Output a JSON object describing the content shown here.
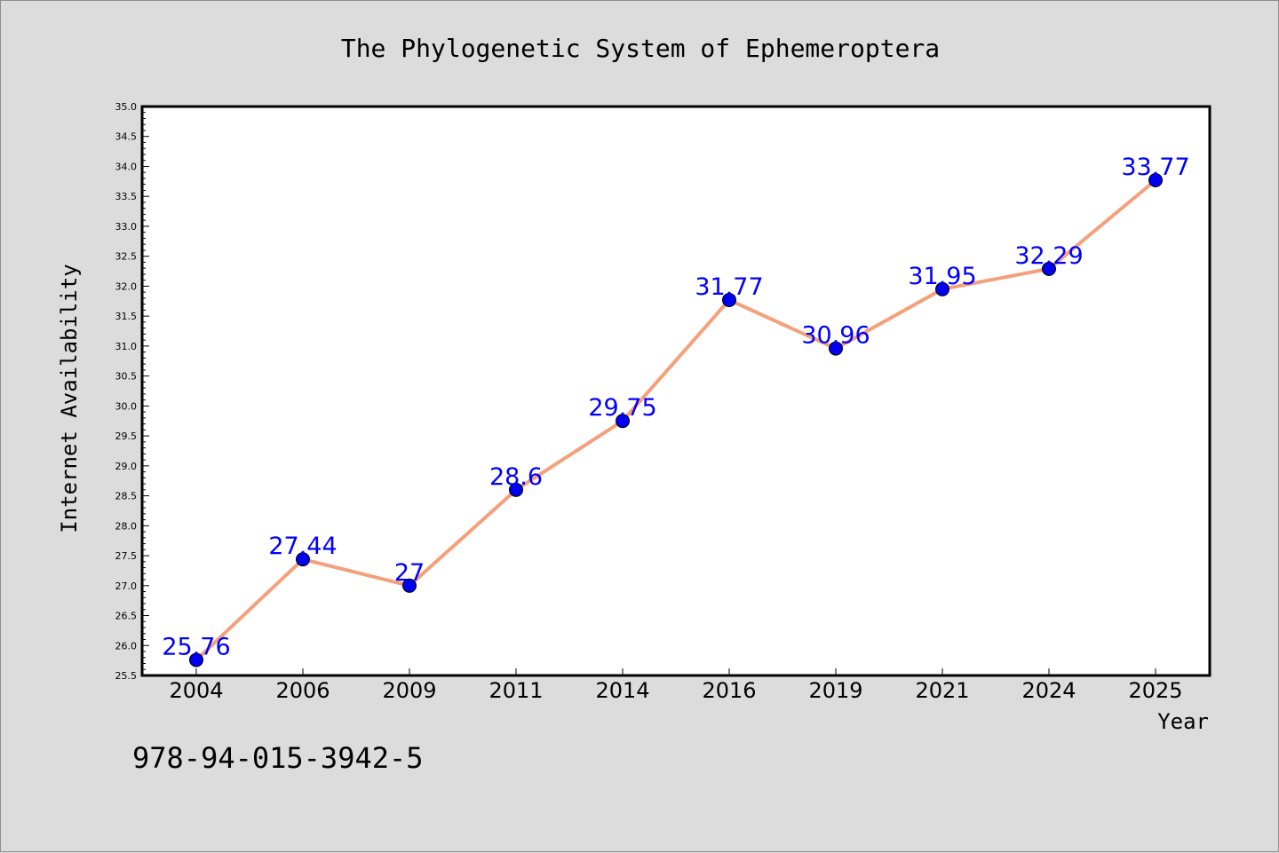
{
  "chart_data": {
    "type": "line",
    "title": "The Phylogenetic System of Ephemeroptera",
    "xlabel": "Year",
    "ylabel": "Internet Availability",
    "categories": [
      "2004",
      "2006",
      "2009",
      "2011",
      "2014",
      "2016",
      "2019",
      "2021",
      "2024",
      "2025"
    ],
    "values": [
      25.76,
      27.44,
      27.0,
      28.6,
      29.75,
      31.77,
      30.96,
      31.95,
      32.29,
      33.77
    ],
    "data_labels": [
      "25.76",
      "27.44",
      "27",
      "28.6",
      "29.75",
      "31.77",
      "30.96",
      "31.95",
      "32.29",
      "33.77"
    ],
    "ylim": [
      25.5,
      35.0
    ],
    "yticks": [
      "25.5",
      "26.0",
      "26.5",
      "27.0",
      "27.5",
      "28.0",
      "28.5",
      "29.0",
      "29.5",
      "30.0",
      "30.5",
      "31.0",
      "31.5",
      "32.0",
      "32.5",
      "33.0",
      "33.5",
      "34.0",
      "34.5",
      "35.0"
    ],
    "grid": false,
    "colors": {
      "line": "#f5a07a",
      "marker": "#0000ee",
      "label": "#0000ff",
      "background": "#dcdcdc",
      "plot": "#ffffff"
    }
  },
  "footer": {
    "isbn": "978-94-015-3942-5"
  }
}
